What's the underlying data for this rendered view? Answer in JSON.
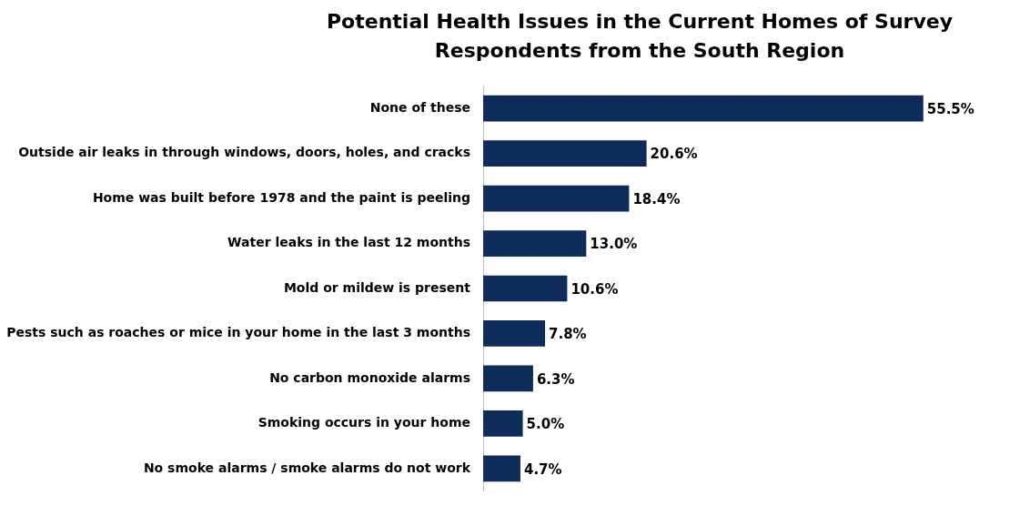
{
  "chart_data": {
    "type": "bar",
    "orientation": "horizontal",
    "title": "Potential Health Issues in the Current Homes of Survey Respondents from the South Region",
    "categories": [
      "None of these",
      "Outside air leaks in through windows, doors, holes, and cracks",
      "Home was built before 1978 and the paint is peeling",
      "Water leaks in the last 12 months",
      "Mold or mildew is present",
      "Pests such as roaches or mice in your home in the last 3 months",
      "No carbon monoxide alarms",
      "Smoking occurs in your home",
      "No smoke alarms / smoke alarms do not work"
    ],
    "values": [
      55.5,
      20.6,
      18.4,
      13.0,
      10.6,
      7.8,
      6.3,
      5.0,
      4.7
    ],
    "value_labels": [
      "55.5%",
      "20.6%",
      "18.4%",
      "13.0%",
      "10.6%",
      "7.8%",
      "6.3%",
      "5.0%",
      "4.7%"
    ],
    "color": "#0e2c5a",
    "grid": false,
    "legend": false,
    "tick_labels": "y"
  }
}
